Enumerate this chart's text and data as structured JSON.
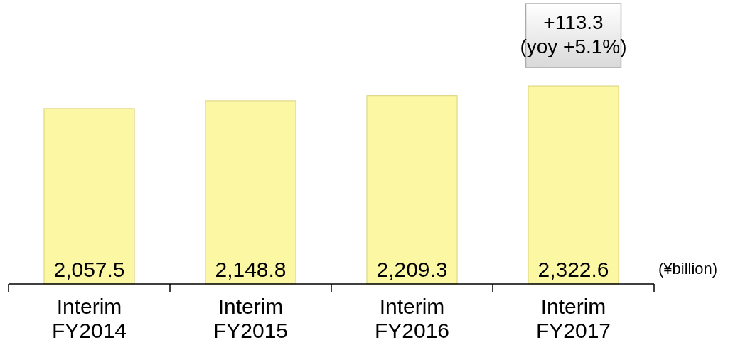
{
  "chart_data": {
    "type": "bar",
    "categories": [
      "Interim\nFY2014",
      "Interim\nFY2015",
      "Interim\nFY2016",
      "Interim\nFY2017"
    ],
    "values": [
      2057.5,
      2148.8,
      2209.3,
      2322.6
    ],
    "color": "#fbf7a2",
    "value_labels": [
      "2,057.5",
      "2,148.8",
      "2,209.3",
      "2,322.6"
    ],
    "ylabel": "(¥billion)",
    "annotations": [
      "+113.3\n(yoy +5.1%)"
    ]
  }
}
